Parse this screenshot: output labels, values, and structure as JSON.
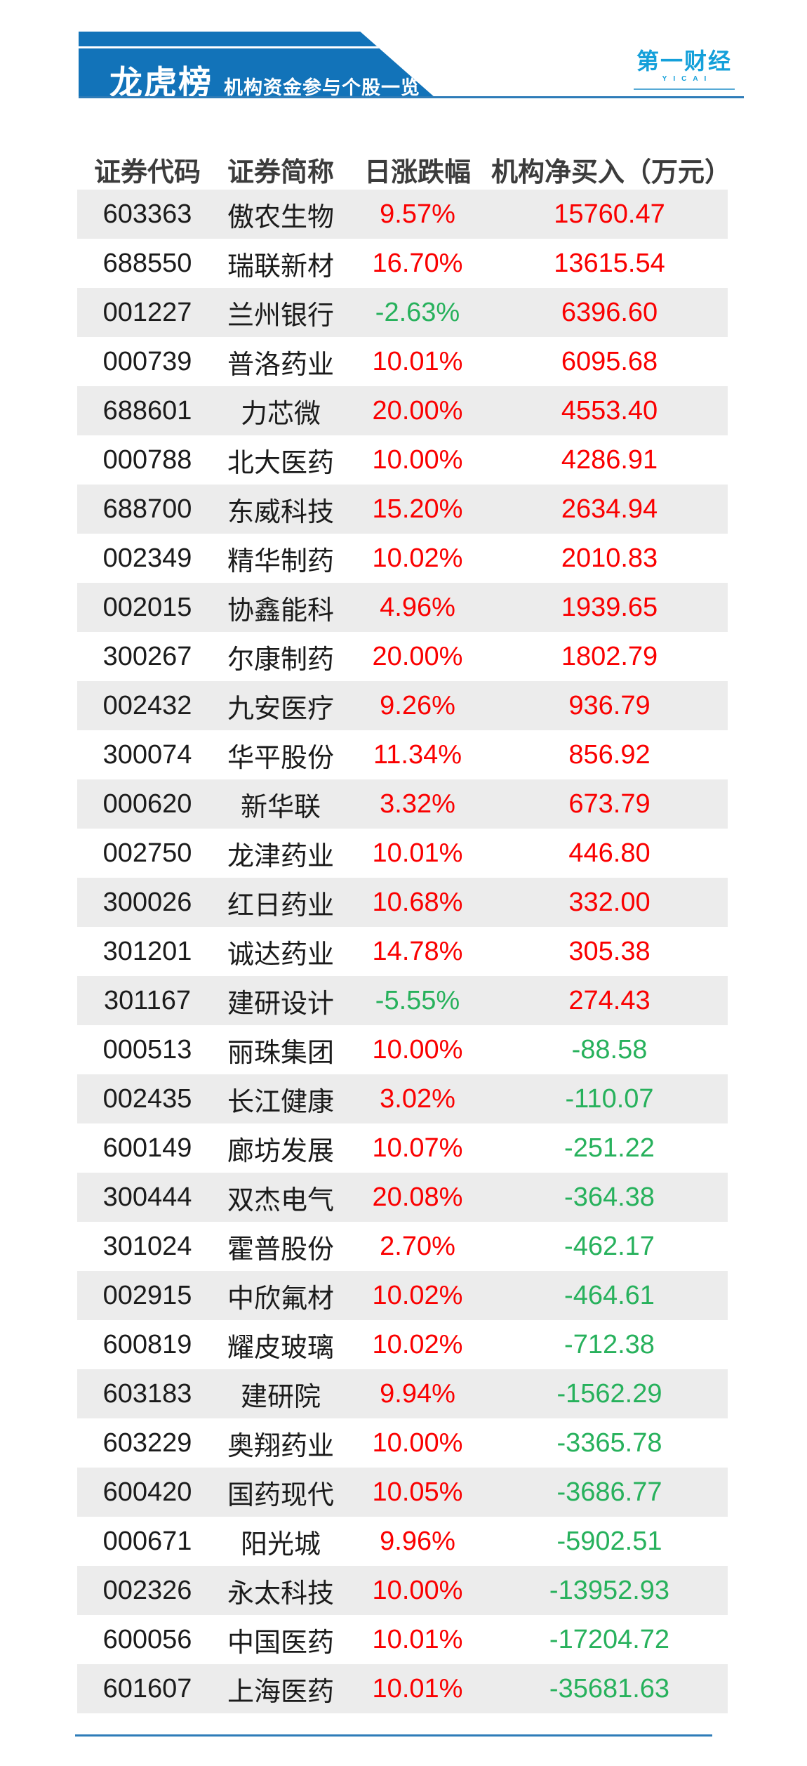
{
  "banner": {
    "title": "龙虎榜",
    "subtitle": "机构资金参与个股一览"
  },
  "logo": {
    "text": "第一财经",
    "latin": "YICAI"
  },
  "chart_data": {
    "type": "table",
    "title": "龙虎榜 机构资金参与个股一览",
    "columns": [
      "证券代码",
      "证券简称",
      "日涨跌幅",
      "机构净买入（万元）"
    ],
    "rows": [
      [
        "603363",
        "傲农生物",
        "9.57%",
        "15760.47"
      ],
      [
        "688550",
        "瑞联新材",
        "16.70%",
        "13615.54"
      ],
      [
        "001227",
        "兰州银行",
        "-2.63%",
        "6396.60"
      ],
      [
        "000739",
        "普洛药业",
        "10.01%",
        "6095.68"
      ],
      [
        "688601",
        "力芯微",
        "20.00%",
        "4553.40"
      ],
      [
        "000788",
        "北大医药",
        "10.00%",
        "4286.91"
      ],
      [
        "688700",
        "东威科技",
        "15.20%",
        "2634.94"
      ],
      [
        "002349",
        "精华制药",
        "10.02%",
        "2010.83"
      ],
      [
        "002015",
        "协鑫能科",
        "4.96%",
        "1939.65"
      ],
      [
        "300267",
        "尔康制药",
        "20.00%",
        "1802.79"
      ],
      [
        "002432",
        "九安医疗",
        "9.26%",
        "936.79"
      ],
      [
        "300074",
        "华平股份",
        "11.34%",
        "856.92"
      ],
      [
        "000620",
        "新华联",
        "3.32%",
        "673.79"
      ],
      [
        "002750",
        "龙津药业",
        "10.01%",
        "446.80"
      ],
      [
        "300026",
        "红日药业",
        "10.68%",
        "332.00"
      ],
      [
        "301201",
        "诚达药业",
        "14.78%",
        "305.38"
      ],
      [
        "301167",
        "建研设计",
        "-5.55%",
        "274.43"
      ],
      [
        "000513",
        "丽珠集团",
        "10.00%",
        "-88.58"
      ],
      [
        "002435",
        "长江健康",
        "3.02%",
        "-110.07"
      ],
      [
        "600149",
        "廊坊发展",
        "10.07%",
        "-251.22"
      ],
      [
        "300444",
        "双杰电气",
        "20.08%",
        "-364.38"
      ],
      [
        "301024",
        "霍普股份",
        "2.70%",
        "-462.17"
      ],
      [
        "002915",
        "中欣氟材",
        "10.02%",
        "-464.61"
      ],
      [
        "600819",
        "耀皮玻璃",
        "10.02%",
        "-712.38"
      ],
      [
        "603183",
        "建研院",
        "9.94%",
        "-1562.29"
      ],
      [
        "603229",
        "奥翔药业",
        "10.00%",
        "-3365.78"
      ],
      [
        "600420",
        "国药现代",
        "10.05%",
        "-3686.77"
      ],
      [
        "000671",
        "阳光城",
        "9.96%",
        "-5902.51"
      ],
      [
        "002326",
        "永太科技",
        "10.00%",
        "-13952.93"
      ],
      [
        "600056",
        "中国医药",
        "10.01%",
        "-17204.72"
      ],
      [
        "601607",
        "上海医药",
        "10.01%",
        "-35681.63"
      ]
    ],
    "legend": "red = positive value, green = negative value",
    "colors": {
      "banner_bg": "#1273b9",
      "logo_blue": "#14a0da",
      "positive_red": "#fa0000",
      "negative_green": "#27b15c",
      "row_alt_bg": "#ececec",
      "rule_blue": "#2e7cb8",
      "logo_rule_blue": "#58aad6",
      "header_text": "#3c3c3c",
      "body_text": "#1b1b1b"
    }
  }
}
